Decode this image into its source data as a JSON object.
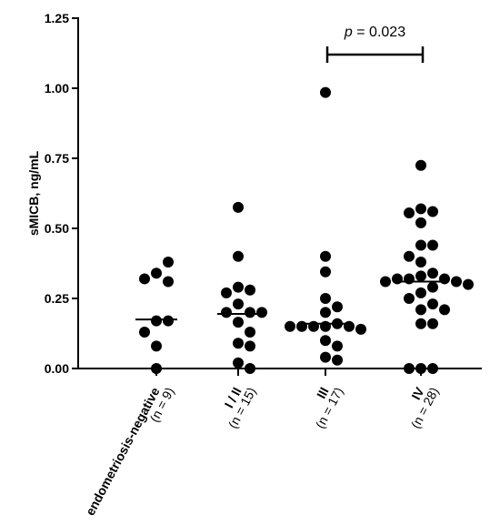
{
  "chart_data": {
    "type": "scatter",
    "ylabel": "sMICB, ng/mL",
    "ylim": [
      0,
      1.25
    ],
    "yticks": [
      "0.00",
      "0.25",
      "0.50",
      "0.75",
      "1.00",
      "1.25"
    ],
    "grid": false,
    "categories": [
      {
        "label": "endometriosis-negative",
        "n_label": "(n = 9)"
      },
      {
        "label": "I / II",
        "n_label": "(n = 15)"
      },
      {
        "label": "III",
        "n_label": "(n = 17)"
      },
      {
        "label": "IV",
        "n_label": "(n = 28)"
      }
    ],
    "series": [
      {
        "category": "endometriosis-negative",
        "median": 0.175,
        "values": [
          0.34,
          0.38,
          0.31,
          0.32,
          0.17,
          0.17,
          0.08,
          0.13,
          0.0
        ]
      },
      {
        "category": "I / II",
        "median": 0.195,
        "values": [
          0.575,
          0.4,
          0.29,
          0.28,
          0.23,
          0.2,
          0.2,
          0.27,
          0.2,
          0.165,
          0.13,
          0.09,
          0.08,
          0.02,
          0.0
        ]
      },
      {
        "category": "III",
        "median": 0.16,
        "values": [
          0.985,
          0.4,
          0.345,
          0.25,
          0.22,
          0.2,
          0.16,
          0.15,
          0.15,
          0.15,
          0.15,
          0.14,
          0.15,
          0.1,
          0.08,
          0.04,
          0.03
        ]
      },
      {
        "category": "IV",
        "median": 0.31,
        "values": [
          0.725,
          0.57,
          0.56,
          0.555,
          0.52,
          0.44,
          0.44,
          0.4,
          0.38,
          0.34,
          0.33,
          0.32,
          0.32,
          0.32,
          0.31,
          0.31,
          0.3,
          0.29,
          0.27,
          0.25,
          0.23,
          0.21,
          0.21,
          0.16,
          0.16,
          0.0,
          0.0,
          0.0
        ]
      }
    ],
    "annotation": {
      "text": "p = 0.023",
      "italic_part": "p",
      "between": [
        "III",
        "IV"
      ],
      "bracket_value": 1.12
    }
  }
}
